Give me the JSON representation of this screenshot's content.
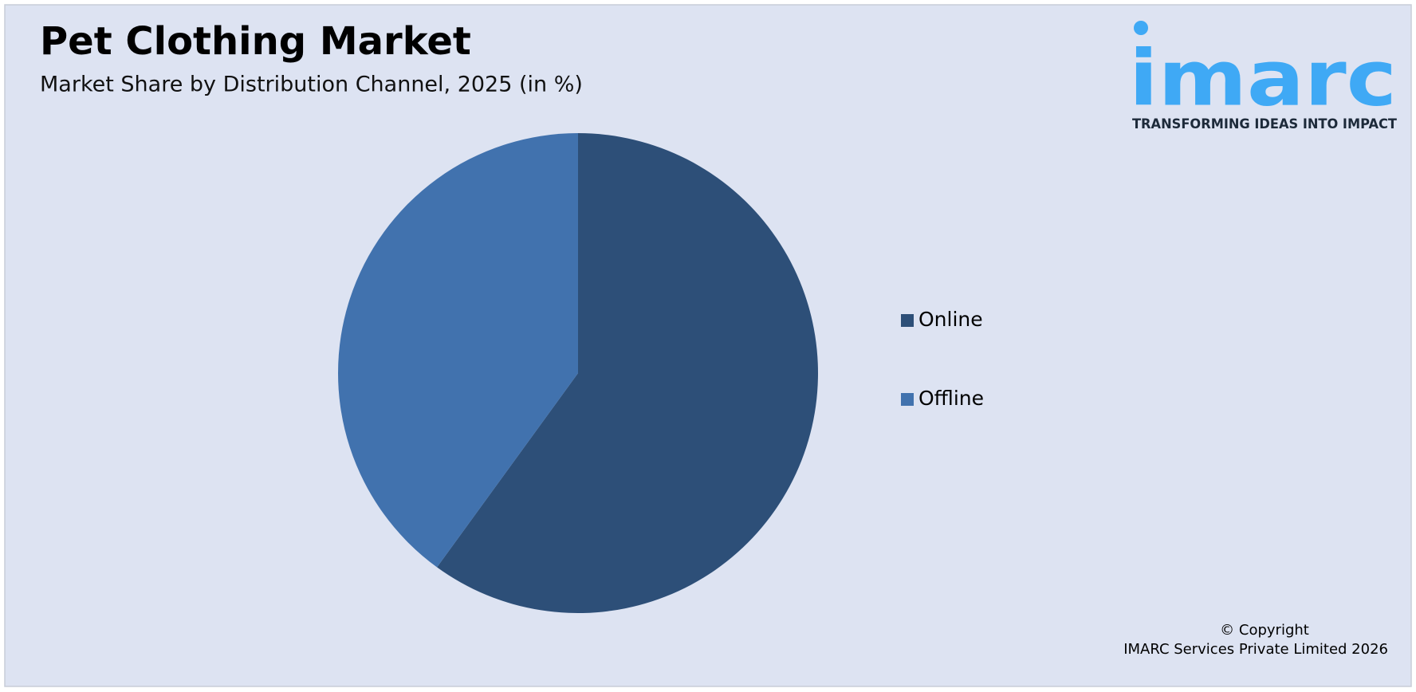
{
  "chart_data": {
    "type": "pie",
    "title": "Pet Clothing Market",
    "subtitle": "Market Share by Distribution Channel, 2025 (in %)",
    "categories": [
      "Online",
      "Offline"
    ],
    "values": [
      60,
      40
    ],
    "colors": [
      "#2d4f78",
      "#4172ae"
    ],
    "legend": "right"
  },
  "logo": {
    "name": "imarc",
    "tagline": "TRANSFORMING IDEAS INTO IMPACT"
  },
  "copyright": [
    "© Copyright",
    "IMARC Services Private Limited 2026"
  ]
}
